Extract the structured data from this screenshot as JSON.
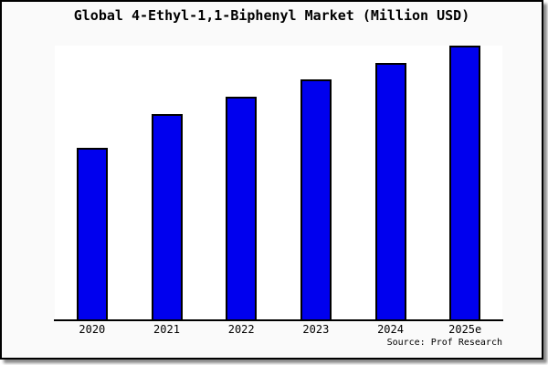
{
  "window": {
    "background": "#fafafa",
    "border_color": "#000000",
    "shadow_color": "#8a8a8a",
    "page_background": "#ffffff"
  },
  "footer": {
    "source": "Source: Prof Research"
  },
  "chart_data": {
    "type": "bar",
    "title": "Global 4-Ethyl-1,1-Biphenyl Market (Million USD)",
    "categories": [
      "2020",
      "2021",
      "2022",
      "2023",
      "2024",
      "2025e"
    ],
    "values": [
      62.7,
      75.0,
      81.3,
      87.7,
      93.7,
      100.0
    ],
    "xlabel": "",
    "ylabel": "",
    "ylim": [
      0,
      100
    ],
    "y_axis_labels_shown": false,
    "grid": false,
    "legend": null,
    "bar_color": "#0000ee",
    "bar_border_color": "#000000",
    "plot_bg": "#ffffff",
    "axis_color": "#000000",
    "source": "Source: Prof Research"
  }
}
